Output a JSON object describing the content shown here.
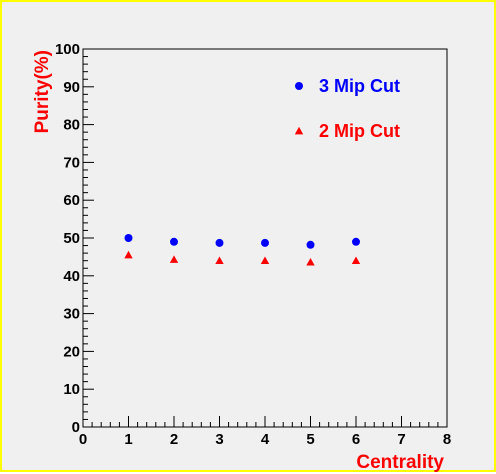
{
  "chart_data": {
    "type": "scatter",
    "title": "",
    "xlabel": "Centrality",
    "ylabel": "Purity(%)",
    "xlim": [
      0,
      8
    ],
    "ylim": [
      0,
      100
    ],
    "x_ticks": [
      "0",
      "1",
      "2",
      "3",
      "4",
      "5",
      "6",
      "7",
      "8"
    ],
    "y_ticks": [
      "0",
      "10",
      "20",
      "30",
      "40",
      "50",
      "60",
      "70",
      "80",
      "90",
      "100"
    ],
    "grid": false,
    "legend_position": "top-right",
    "axis_label_color": "#ff0000",
    "series": [
      {
        "name": "3 Mip Cut",
        "marker": "circle",
        "color": "#0000ff",
        "x": [
          1,
          2,
          3,
          4,
          5,
          6
        ],
        "y": [
          50,
          49,
          48.7,
          48.7,
          48.2,
          49
        ]
      },
      {
        "name": "2 Mip Cut",
        "marker": "triangle",
        "color": "#ff0000",
        "x": [
          1,
          2,
          3,
          4,
          5,
          6
        ],
        "y": [
          45.5,
          44.3,
          44,
          44,
          43.6,
          44
        ]
      }
    ]
  }
}
